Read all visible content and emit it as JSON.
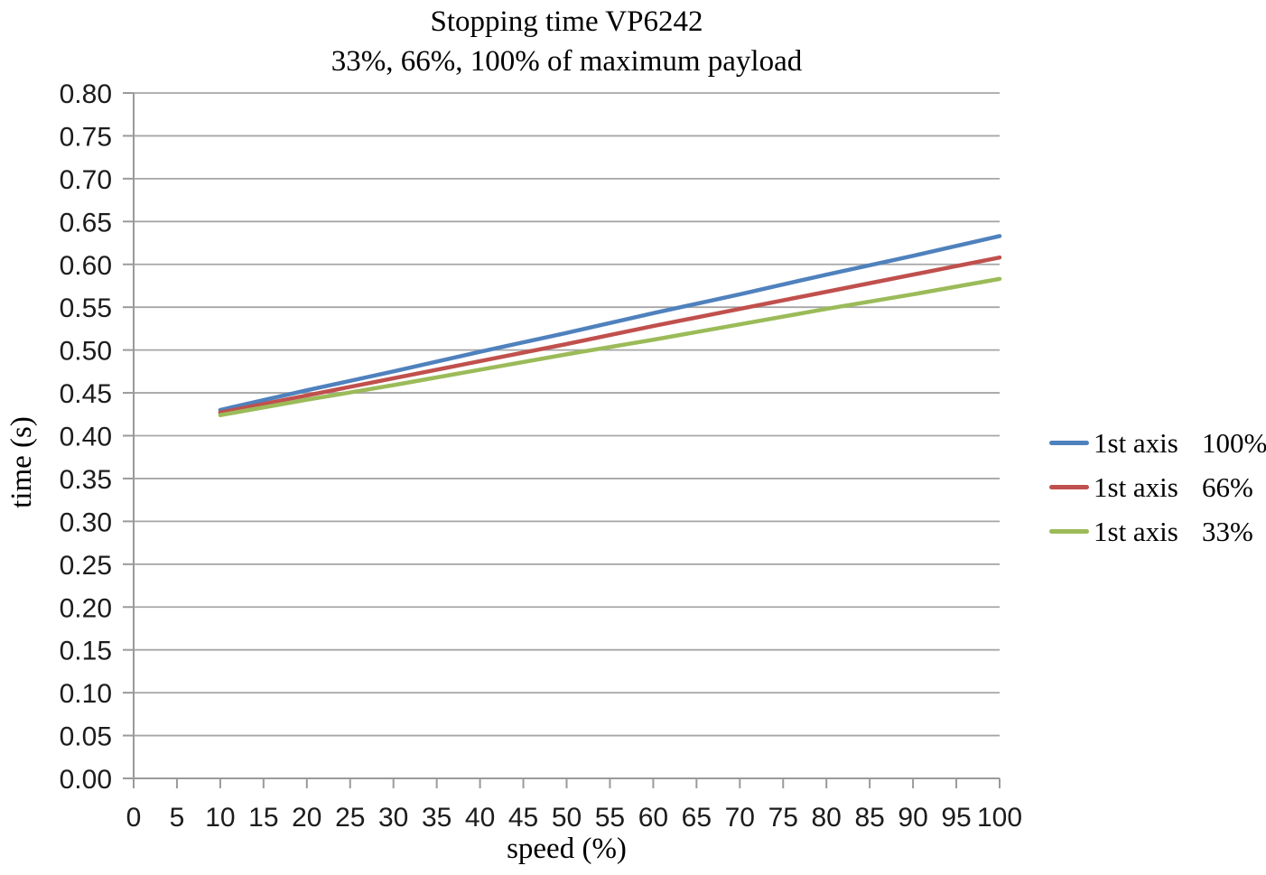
{
  "chart_data": {
    "type": "line",
    "title": "Stopping time VP6242",
    "subtitle": "33%, 66%, 100% of maximum payload",
    "xlabel": "speed (%)",
    "ylabel": "time (s)",
    "xlim": [
      0,
      100
    ],
    "ylim": [
      0,
      0.8
    ],
    "grid": "horizontal",
    "legend_position": "right",
    "x_tick_labels": [
      "0",
      "5",
      "10",
      "15",
      "20",
      "25",
      "30",
      "35",
      "40",
      "45",
      "50",
      "55",
      "60",
      "65",
      "70",
      "75",
      "80",
      "85",
      "90",
      "95",
      "100"
    ],
    "y_tick_labels": [
      "0.00",
      "0.05",
      "0.10",
      "0.15",
      "0.20",
      "0.25",
      "0.30",
      "0.35",
      "0.40",
      "0.45",
      "0.50",
      "0.55",
      "0.60",
      "0.65",
      "0.70",
      "0.75",
      "0.80"
    ],
    "x": [
      10,
      20,
      30,
      40,
      50,
      60,
      70,
      80,
      90,
      100
    ],
    "series": [
      {
        "name": "1st axis 100%",
        "color": "#4F81BD",
        "values": [
          0.43,
          0.453,
          0.475,
          0.498,
          0.52,
          0.543,
          0.565,
          0.588,
          0.61,
          0.633
        ]
      },
      {
        "name": "1st axis 66%",
        "color": "#C0504D",
        "values": [
          0.427,
          0.447,
          0.467,
          0.487,
          0.507,
          0.528,
          0.548,
          0.568,
          0.588,
          0.608
        ]
      },
      {
        "name": "1st axis 33%",
        "color": "#9BBB59",
        "values": [
          0.424,
          0.442,
          0.459,
          0.477,
          0.495,
          0.512,
          0.53,
          0.548,
          0.565,
          0.583
        ]
      }
    ],
    "legend": {
      "items": [
        {
          "label": "1st axis",
          "value": "100%",
          "color": "#4F81BD"
        },
        {
          "label": "1st axis",
          "value": "66%",
          "color": "#C0504D"
        },
        {
          "label": "1st axis",
          "value": "33%",
          "color": "#9BBB59"
        }
      ]
    },
    "colors": {
      "gridline": "#A6A6A6",
      "axis": "#9A9A9A",
      "text": "#000000"
    }
  }
}
